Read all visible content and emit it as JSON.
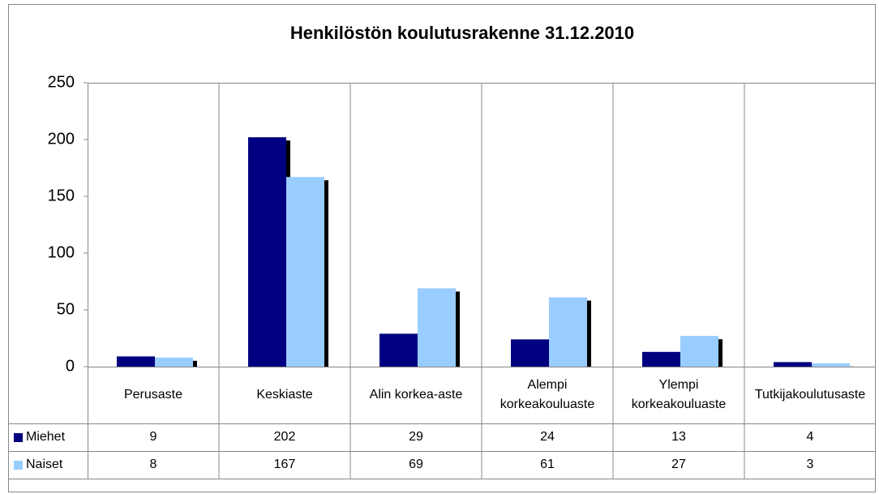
{
  "chart_data": {
    "type": "bar",
    "title": "Henkilöstön koulutusrakenne 31.12.2010",
    "categories": [
      "Perusaste",
      "Keskiaste",
      "Alin korkea-aste",
      "Alempi korkeakouluaste",
      "Ylempi korkeakouluaste",
      "Tutkijakoulutusaste"
    ],
    "series": [
      {
        "name": "Miehet",
        "color": "#000080",
        "values": [
          9,
          202,
          29,
          24,
          13,
          4
        ]
      },
      {
        "name": "Naiset",
        "color": "#99ccff",
        "values": [
          8,
          167,
          69,
          61,
          27,
          3
        ]
      }
    ],
    "ylim": [
      0,
      250
    ],
    "yticks": [
      0,
      50,
      100,
      150,
      200,
      250
    ],
    "grid": false,
    "legend": "table"
  }
}
